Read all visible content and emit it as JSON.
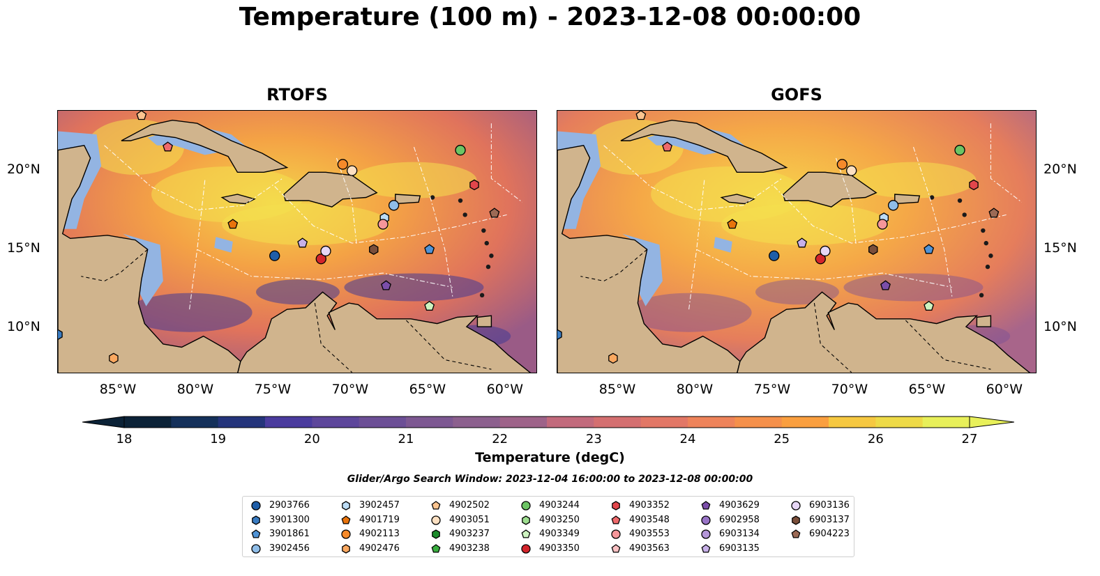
{
  "title": "Temperature (100 m) - 2023-12-08 00:00:00",
  "panels": [
    {
      "title": "RTOFS"
    },
    {
      "title": "GOFS"
    }
  ],
  "axes": {
    "lon_ticks": [
      "85°W",
      "80°W",
      "75°W",
      "70°W",
      "65°W",
      "60°W"
    ],
    "lat_ticks": [
      "20°N",
      "15°N",
      "10°N"
    ],
    "lon_range": [
      -89,
      -58
    ],
    "lat_range": [
      7.1,
      23.8
    ]
  },
  "colorbar": {
    "label": "Temperature (degC)",
    "ticks": [
      "18",
      "19",
      "20",
      "21",
      "22",
      "23",
      "24",
      "25",
      "26",
      "27"
    ],
    "range": [
      18,
      27
    ],
    "colors": [
      "#0b2237",
      "#14305a",
      "#24347b",
      "#36369a",
      "#4a3b9e",
      "#5d469b",
      "#6c4f96",
      "#7d5892",
      "#8c608e",
      "#9e6389",
      "#b06684",
      "#c26a7c",
      "#d46f70",
      "#e27766",
      "#ee835a",
      "#f5904b",
      "#fa9f3f",
      "#fbb43d",
      "#f6c841",
      "#eeda47",
      "#e8f05a"
    ]
  },
  "search_window": "Glider/Argo Search Window: 2023-12-04 16:00:00 to 2023-12-08 00:00:00",
  "legend": [
    {
      "id": "2903766",
      "marker": "circle",
      "color": "#1f5ea8"
    },
    {
      "id": "3901300",
      "marker": "hexagon",
      "color": "#3a7cc2"
    },
    {
      "id": "3901861",
      "marker": "pentagon",
      "color": "#4f93d6"
    },
    {
      "id": "3902456",
      "marker": "circle",
      "color": "#8fbde8"
    },
    {
      "id": "3902457",
      "marker": "hexagon",
      "color": "#bcdcf5"
    },
    {
      "id": "4901719",
      "marker": "pentagon",
      "color": "#e8730c"
    },
    {
      "id": "4902113",
      "marker": "circle",
      "color": "#f68a2a"
    },
    {
      "id": "4902476",
      "marker": "hexagon",
      "color": "#faa860"
    },
    {
      "id": "4902502",
      "marker": "pentagon",
      "color": "#fcc48f"
    },
    {
      "id": "4903051",
      "marker": "circle",
      "color": "#fde0c2"
    },
    {
      "id": "4903237",
      "marker": "hexagon",
      "color": "#1c8c2c"
    },
    {
      "id": "4903238",
      "marker": "pentagon",
      "color": "#3aae3f"
    },
    {
      "id": "4903244",
      "marker": "circle",
      "color": "#6cc464"
    },
    {
      "id": "4903250",
      "marker": "hexagon",
      "color": "#9ede90"
    },
    {
      "id": "4903349",
      "marker": "pentagon",
      "color": "#cdf3c0"
    },
    {
      "id": "4903350",
      "marker": "circle",
      "color": "#d3242b"
    },
    {
      "id": "4903352",
      "marker": "hexagon",
      "color": "#e2464b"
    },
    {
      "id": "4903548",
      "marker": "pentagon",
      "color": "#ef6a6c"
    },
    {
      "id": "4903553",
      "marker": "circle",
      "color": "#f5969a"
    },
    {
      "id": "4903563",
      "marker": "pentagon",
      "color": "#f9c0c2"
    },
    {
      "id": "4903629",
      "marker": "pentagon",
      "color": "#7b4ea9"
    },
    {
      "id": "6902958",
      "marker": "circle",
      "color": "#9974c7"
    },
    {
      "id": "6903134",
      "marker": "circle",
      "color": "#b496d8"
    },
    {
      "id": "6903135",
      "marker": "pentagon",
      "color": "#c7b0e8"
    },
    {
      "id": "6903136",
      "marker": "circle",
      "color": "#e6d6f5"
    },
    {
      "id": "6903137",
      "marker": "hexagon",
      "color": "#7a4e3a"
    },
    {
      "id": "6904223",
      "marker": "pentagon",
      "color": "#9c6a55"
    }
  ],
  "floats": [
    {
      "id": "2903766",
      "lon": -75.0,
      "lat": 14.6
    },
    {
      "id": "3901300",
      "lon": -89.0,
      "lat": 9.6
    },
    {
      "id": "3901861",
      "lon": -65.0,
      "lat": 15.0
    },
    {
      "id": "3902456",
      "lon": -67.3,
      "lat": 17.8
    },
    {
      "id": "3902457",
      "lon": -67.9,
      "lat": 17.0
    },
    {
      "id": "4901719",
      "lon": -77.7,
      "lat": 16.6
    },
    {
      "id": "4902113",
      "lon": -70.6,
      "lat": 20.4
    },
    {
      "id": "4902476",
      "lon": -85.4,
      "lat": 8.1
    },
    {
      "id": "4902502",
      "lon": -83.6,
      "lat": 23.5
    },
    {
      "id": "4903051",
      "lon": -70.0,
      "lat": 20.0
    },
    {
      "id": "4903244",
      "lon": -63.0,
      "lat": 21.3
    },
    {
      "id": "4903349",
      "lon": -65.0,
      "lat": 11.4
    },
    {
      "id": "4903350",
      "lon": -72.0,
      "lat": 14.4
    },
    {
      "id": "4903352",
      "lon": -62.1,
      "lat": 19.1
    },
    {
      "id": "4903548",
      "lon": -81.9,
      "lat": 21.5
    },
    {
      "id": "4903553",
      "lon": -68.0,
      "lat": 16.6
    },
    {
      "id": "4903629",
      "lon": -67.8,
      "lat": 12.7
    },
    {
      "id": "6903135",
      "lon": -73.2,
      "lat": 15.4
    },
    {
      "id": "6903136",
      "lon": -71.7,
      "lat": 14.9
    },
    {
      "id": "6903137",
      "lon": -68.6,
      "lat": 15.0
    },
    {
      "id": "6904223",
      "lon": -60.8,
      "lat": 17.3
    }
  ]
}
